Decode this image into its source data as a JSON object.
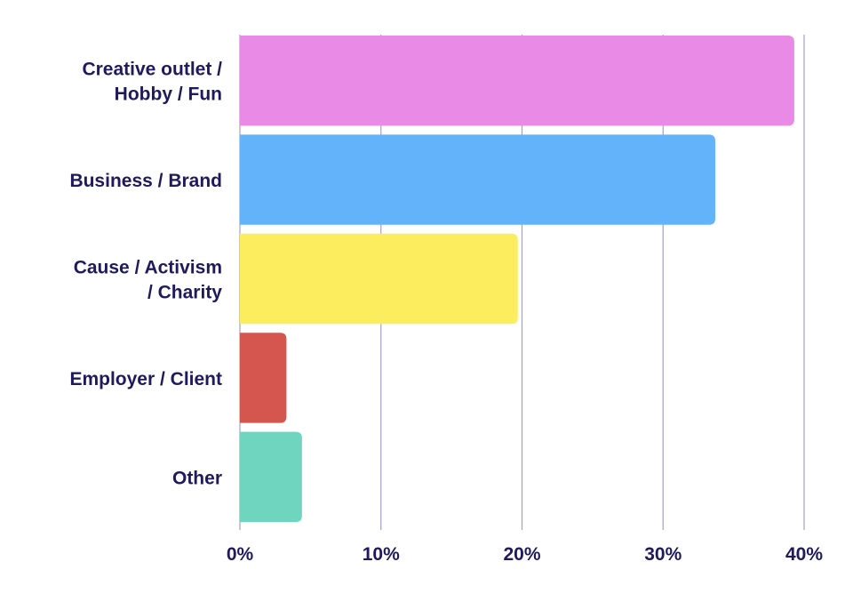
{
  "chart_data": {
    "type": "bar",
    "orientation": "horizontal",
    "title": "",
    "xlabel": "",
    "ylabel": "",
    "categories": [
      [
        "Creative outlet /",
        "Hobby / Fun"
      ],
      [
        "Business / Brand"
      ],
      [
        "Cause / Activism",
        "/ Charity"
      ],
      [
        "Employer / Client"
      ],
      [
        "Other"
      ]
    ],
    "values": [
      39.3,
      33.7,
      19.7,
      3.3,
      4.4
    ],
    "colors": [
      "#e98ae6",
      "#63b3fb",
      "#fbed5d",
      "#d5554f",
      "#6fd5be"
    ],
    "xlim": [
      0,
      40
    ],
    "xticks": [
      0,
      10,
      20,
      30,
      40
    ],
    "xtick_labels": [
      "0%",
      "10%",
      "20%",
      "30%",
      "40%"
    ],
    "grid": "vertical",
    "grid_color": "#a39fcc",
    "text_color": "#1f1a5e"
  }
}
